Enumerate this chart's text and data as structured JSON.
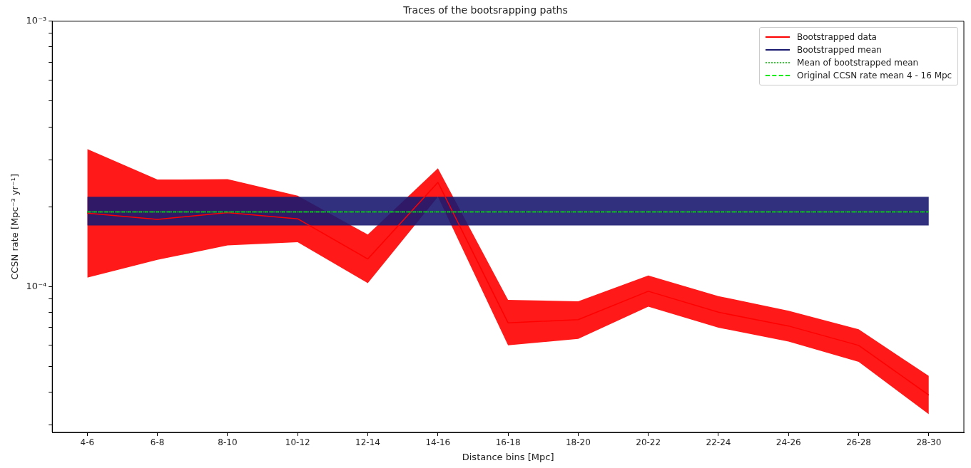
{
  "chart_data": {
    "type": "line",
    "title": "Traces of the bootsrapping paths",
    "xlabel": "Distance bins [Mpc]",
    "ylabel": "CCSN rate [Mpc⁻³ yr⁻¹]",
    "categories": [
      "4-6",
      "6-8",
      "8-10",
      "10-12",
      "12-14",
      "14-16",
      "16-18",
      "18-20",
      "20-22",
      "22-24",
      "24-26",
      "26-28",
      "28-30"
    ],
    "series": [
      {
        "name": "Bootstrapped data",
        "color": "#ff0000",
        "values": [
          0.000189,
          0.000179,
          0.00019,
          0.00018,
          0.000127,
          0.000247,
          7.3e-05,
          7.5e-05,
          9.6e-05,
          8e-05,
          7.1e-05,
          6e-05,
          3.9e-05
        ],
        "lower": [
          0.000108,
          0.000126,
          0.000143,
          0.000147,
          0.000103,
          0.000218,
          6e-05,
          6.35e-05,
          8.4e-05,
          7e-05,
          6.2e-05,
          5.2e-05,
          3.3e-05
        ],
        "upper": [
          0.00033,
          0.000253,
          0.000254,
          0.00022,
          0.000157,
          0.000279,
          8.9e-05,
          8.8e-05,
          0.00011,
          9.2e-05,
          8.1e-05,
          6.9e-05,
          4.6e-05
        ]
      },
      {
        "name": "Bootstrapped mean",
        "color": "#191970",
        "values": [
          0.000191,
          0.000191,
          0.000191,
          0.000191,
          0.000191,
          0.000191,
          0.000191,
          0.000191,
          0.000191,
          0.000191,
          0.000191,
          0.000191,
          0.000191
        ],
        "lower": [
          0.00017,
          0.00017,
          0.00017,
          0.00017,
          0.00017,
          0.00017,
          0.00017,
          0.00017,
          0.00017,
          0.00017,
          0.00017,
          0.00017,
          0.00017
        ],
        "upper": [
          0.000218,
          0.000218,
          0.000218,
          0.000218,
          0.000218,
          0.000218,
          0.000218,
          0.000218,
          0.000218,
          0.000218,
          0.000218,
          0.000218,
          0.000218
        ]
      },
      {
        "name": "Mean of bootstrapped mean",
        "color": "#33cc33",
        "line_style": "dotted",
        "values": [
          0.000191,
          0.000191,
          0.000191,
          0.000191,
          0.000191,
          0.000191,
          0.000191,
          0.000191,
          0.000191,
          0.000191,
          0.000191,
          0.000191,
          0.000191
        ]
      },
      {
        "name": "Original CCSN rate mean 4 - 16 Mpc",
        "color": "#00ee00",
        "line_style": "dashed",
        "values": [
          0.000191,
          0.000191,
          0.000191,
          0.000191,
          0.000191,
          0.000191,
          0.000191,
          0.000191,
          0.000191,
          0.000191,
          0.000191,
          0.000191,
          0.000191
        ]
      }
    ],
    "log": "y",
    "ylim": [
      2.82e-05,
      0.001
    ],
    "yticks": [
      {
        "value": 3e-05,
        "label": null
      },
      {
        "value": 4e-05,
        "label": null
      },
      {
        "value": 5e-05,
        "label": null
      },
      {
        "value": 6e-05,
        "label": null
      },
      {
        "value": 7e-05,
        "label": null
      },
      {
        "value": 8e-05,
        "label": null
      },
      {
        "value": 9e-05,
        "label": null
      },
      {
        "value": 0.0001,
        "label": "10⁻⁴"
      },
      {
        "value": 0.0002,
        "label": null
      },
      {
        "value": 0.0003,
        "label": null
      },
      {
        "value": 0.0004,
        "label": null
      },
      {
        "value": 0.0005,
        "label": null
      },
      {
        "value": 0.0006,
        "label": null
      },
      {
        "value": 0.0007,
        "label": null
      },
      {
        "value": 0.0008,
        "label": null
      },
      {
        "value": 0.0009,
        "label": null
      },
      {
        "value": 0.001,
        "label": "10⁻³"
      }
    ],
    "grid": false,
    "legend": "top right",
    "marker": "none"
  }
}
